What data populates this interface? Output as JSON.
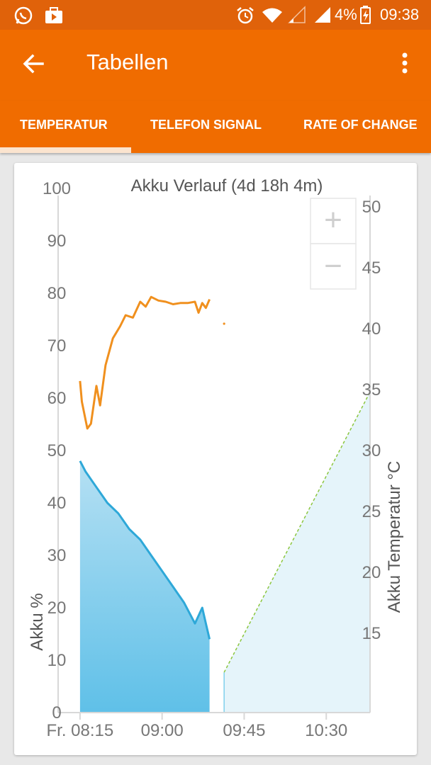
{
  "status_bar": {
    "battery": "4%",
    "time": "09:38",
    "icons": [
      "whatsapp-icon",
      "video-notification-icon",
      "alarm-icon",
      "wifi-icon",
      "signal-1-icon",
      "signal-2-icon",
      "battery-charging-icon"
    ]
  },
  "app_bar": {
    "title": "Tabellen",
    "back_icon": "arrow-left-icon",
    "menu_icon": "more-vert-icon"
  },
  "tabs": [
    {
      "label": "TEMPERATUR",
      "selected": true
    },
    {
      "label": "TELEFON SIGNAL",
      "selected": false
    },
    {
      "label": "RATE OF CHANGE",
      "selected": false
    }
  ],
  "colors": {
    "status_bar": "#e0620a",
    "app_bar": "#f06c00",
    "tab_indicator": "#fbe4cf",
    "battery_line": "#2ea8d8",
    "temperature_line": "#f0901e",
    "projection_line": "#8cc63f"
  },
  "zoom": {
    "in_label": "+",
    "out_label": "−"
  },
  "chart_data": {
    "type": "line",
    "title": "Akku Verlauf (4d 18h 4m)",
    "ylabel": "Akku %",
    "y2label": "Akku Temperatur °C",
    "x_ticks": [
      "Fr. 08:15",
      "09:00",
      "09:45",
      "10:30"
    ],
    "ylim": [
      0,
      100
    ],
    "y_ticks": [
      0,
      10,
      20,
      30,
      40,
      50,
      60,
      70,
      80,
      90,
      100
    ],
    "y2lim": [
      8.5,
      51.5
    ],
    "y2_ticks": [
      15,
      20,
      25,
      30,
      35,
      40,
      45,
      50
    ],
    "grid": false,
    "series": [
      {
        "role": "battery",
        "axis": "left",
        "fill": true,
        "x": [
          "08:15",
          "08:18",
          "08:24",
          "08:30",
          "08:36",
          "08:42",
          "08:48",
          "08:54",
          "09:00",
          "09:06",
          "09:12",
          "09:18",
          "09:22",
          "09:24",
          "09:26"
        ],
        "y": [
          48,
          46,
          43,
          40,
          38,
          35,
          33,
          30,
          27,
          24,
          21,
          17,
          20,
          17,
          14
        ]
      },
      {
        "role": "temperature",
        "axis": "right",
        "fill": false,
        "x": [
          "08:15",
          "08:16",
          "08:19",
          "08:21",
          "08:24",
          "08:26",
          "08:29",
          "08:33",
          "08:37",
          "08:40",
          "08:44",
          "08:48",
          "08:51",
          "08:54",
          "08:58",
          "09:02",
          "09:06",
          "09:10",
          "09:14",
          "09:18",
          "09:20",
          "09:22",
          "09:24",
          "09:26"
        ],
        "y": [
          35.7,
          34.0,
          31.8,
          32.2,
          35.3,
          33.7,
          37.0,
          39.2,
          40.2,
          41.1,
          40.9,
          42.2,
          41.8,
          42.6,
          42.3,
          42.2,
          42.0,
          42.1,
          42.1,
          42.2,
          41.3,
          42.1,
          41.7,
          42.4
        ]
      },
      {
        "role": "temperature-point",
        "axis": "right",
        "x": [
          "09:34"
        ],
        "y": [
          40.4
        ]
      },
      {
        "role": "projection",
        "axis": "right",
        "dashed": true,
        "fill": true,
        "x": [
          "09:34",
          "10:54"
        ],
        "y": [
          11.8,
          34.8
        ]
      }
    ]
  }
}
